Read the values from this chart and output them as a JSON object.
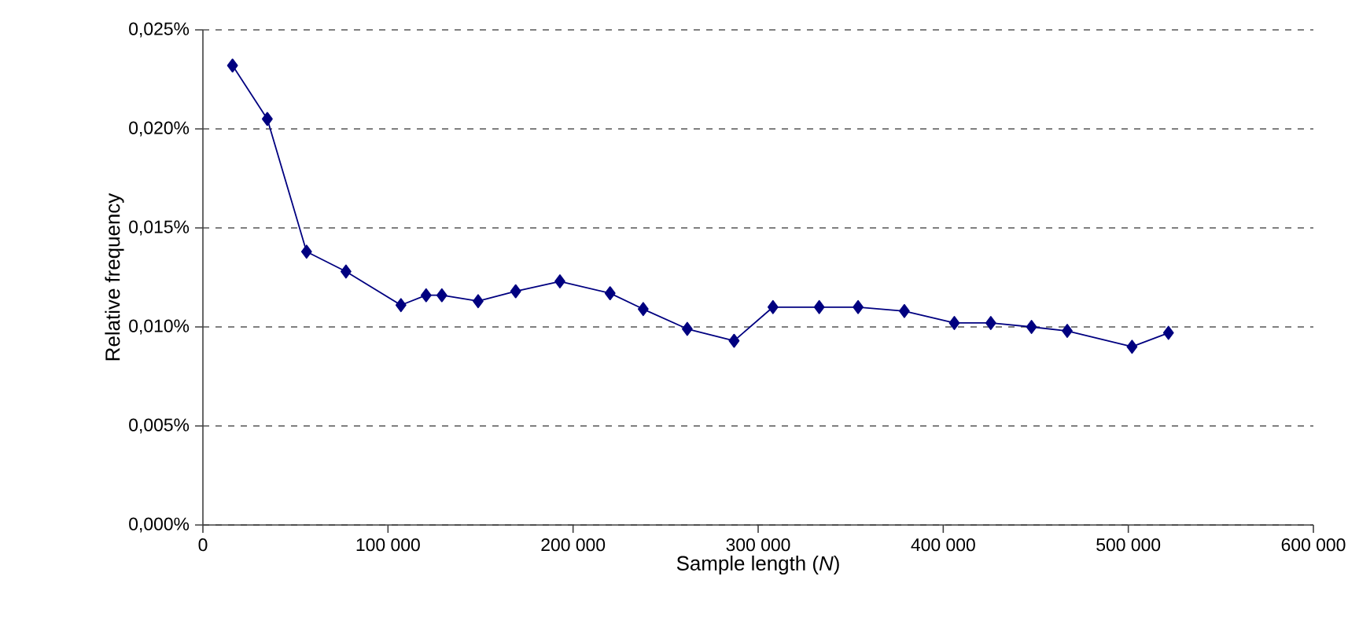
{
  "chart_data": {
    "type": "line",
    "xlabel": "Sample length (*N*)",
    "ylabel": "Relative frequency",
    "x": [
      16000,
      34800,
      56000,
      77300,
      107000,
      120600,
      129100,
      148700,
      169000,
      192900,
      220000,
      237900,
      261700,
      287000,
      308000,
      333000,
      354000,
      379000,
      406000,
      425700,
      447700,
      467000,
      502000,
      521700
    ],
    "series": [
      {
        "color": "#000080",
        "values": [
          0.0232,
          0.0205,
          0.0138,
          0.0128,
          0.0111,
          0.0116,
          0.0116,
          0.0113,
          0.0118,
          0.0123,
          0.0117,
          0.0109,
          0.0099,
          0.0093,
          0.011,
          0.011,
          0.011,
          0.0108,
          0.0102,
          0.0102,
          0.01,
          0.0098,
          0.009,
          0.0097
        ]
      }
    ],
    "xlim": [
      0,
      600000
    ],
    "ylim": [
      0,
      0.025
    ],
    "xticks": [
      0,
      {
        "value": 100000,
        "label": "100 000"
      },
      {
        "value": 200000,
        "label": "200 000"
      },
      {
        "value": 300000,
        "label": "300 000"
      },
      {
        "value": 400000,
        "label": "400 000"
      },
      {
        "value": 500000,
        "label": "500 000"
      },
      {
        "value": 600000,
        "label": "600 000"
      }
    ],
    "yticks": [
      {
        "value": 0,
        "label": "0,000%"
      },
      {
        "value": 0.005,
        "label": "0,005%"
      },
      {
        "value": 0.01,
        "label": "0,010%"
      },
      {
        "value": 0.015,
        "label": "0,015%"
      },
      {
        "value": 0.02,
        "label": "0,020%"
      },
      {
        "value": 0.025,
        "label": "0,025%"
      }
    ],
    "grid": "y",
    "marker": "diamond",
    "line_style": "solid"
  }
}
